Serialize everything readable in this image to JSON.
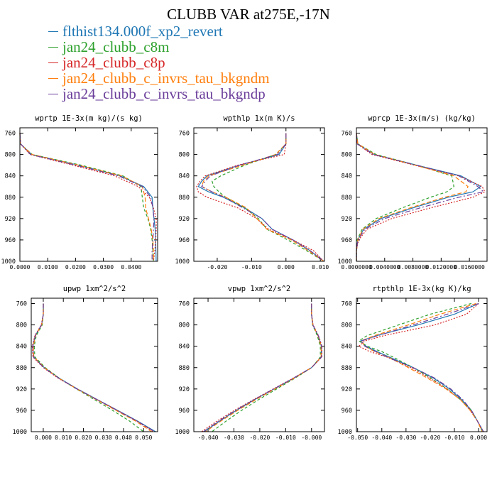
{
  "title": "CLUBB VAR at275E,-17N",
  "legend": [
    {
      "name": "flthist134.000f_xp2_revert",
      "color": "#1f77b4",
      "dash": ""
    },
    {
      "name": "jan24_clubb_c8m",
      "color": "#2ca02c",
      "dash": "4,3"
    },
    {
      "name": "jan24_clubb_c8p",
      "color": "#d62728",
      "dash": "2,2"
    },
    {
      "name": "jan24_clubb_c_invrs_tau_bkgndm",
      "color": "#ff7f0e",
      "dash": "6,3"
    },
    {
      "name": "jan24_clubb_c_invrs_tau_bkgndp",
      "color": "#6a3d9a",
      "dash": "7,3,2,3"
    }
  ],
  "chart_data": [
    {
      "type": "line",
      "title": "wprtp  1E-3x(m kg)/(s kg)",
      "xlim": [
        0,
        0.0495
      ],
      "ylim": [
        750,
        1000
      ],
      "xticks": [
        0,
        0.01,
        0.02,
        0.03,
        0.04
      ],
      "xtick_labels": [
        "0.0000",
        "0.0100",
        "0.0200",
        "0.0300",
        "0.0400"
      ],
      "yticks": [
        760,
        800,
        840,
        880,
        920,
        960,
        1000
      ],
      "y": [
        760,
        780,
        800,
        820,
        840,
        860,
        880,
        900,
        920,
        940,
        960,
        980,
        1000
      ],
      "series": [
        {
          "name": "flthist134.000f_xp2_revert",
          "values": [
            0,
            0.0002,
            0.0042,
            0.021,
            0.036,
            0.0445,
            0.0475,
            0.0478,
            0.0482,
            0.0486,
            0.0488,
            0.0489,
            0.049
          ]
        },
        {
          "name": "jan24_clubb_c8m",
          "values": [
            0,
            0.0001,
            0.0045,
            0.022,
            0.037,
            0.0435,
            0.044,
            0.0445,
            0.046,
            0.047,
            0.0475,
            0.0478,
            0.048
          ]
        },
        {
          "name": "jan24_clubb_c8p",
          "values": [
            0,
            0.0002,
            0.0037,
            0.019,
            0.034,
            0.0425,
            0.0465,
            0.048,
            0.049,
            0.049,
            0.0488,
            0.0485,
            0.048
          ]
        },
        {
          "name": "jan24_clubb_c_invrs_tau_bkgndm",
          "values": [
            0,
            0.0001,
            0.0044,
            0.021,
            0.0365,
            0.044,
            0.045,
            0.0452,
            0.0462,
            0.0472,
            0.0478,
            0.048,
            0.048
          ]
        },
        {
          "name": "jan24_clubb_c_invrs_tau_bkgndp",
          "values": [
            0,
            0.0003,
            0.0038,
            0.02,
            0.0355,
            0.044,
            0.047,
            0.0478,
            0.0482,
            0.048,
            0.0478,
            0.0475,
            0.0475
          ]
        }
      ]
    },
    {
      "type": "line",
      "title": "wpthlp  1x(m K)/s",
      "xlim": [
        -0.0268,
        0.0112
      ],
      "ylim": [
        750,
        1000
      ],
      "xticks": [
        -0.02,
        -0.01,
        0,
        0.01
      ],
      "xtick_labels": [
        "-0.020",
        "-0.010",
        "0.000",
        "0.010"
      ],
      "yticks": [
        760,
        800,
        840,
        880,
        920,
        960,
        1000
      ],
      "y": [
        760,
        780,
        800,
        820,
        840,
        850,
        860,
        870,
        880,
        900,
        920,
        940,
        960,
        980,
        1000
      ],
      "series": [
        {
          "name": "flthist134.000f_xp2_revert",
          "values": [
            0,
            0,
            -0.002,
            -0.0135,
            -0.023,
            -0.0245,
            -0.0255,
            -0.0225,
            -0.0182,
            -0.012,
            -0.007,
            -0.004,
            0.002,
            0.007,
            0.011
          ]
        },
        {
          "name": "jan24_clubb_c8m",
          "values": [
            0,
            0,
            -0.003,
            -0.012,
            -0.019,
            -0.0215,
            -0.021,
            -0.0195,
            -0.0175,
            -0.012,
            -0.008,
            -0.0055,
            0.0005,
            0.006,
            0.011
          ]
        },
        {
          "name": "jan24_clubb_c8p",
          "values": [
            0,
            0,
            -0.0005,
            -0.014,
            -0.0235,
            -0.025,
            -0.026,
            -0.0255,
            -0.023,
            -0.014,
            -0.0085,
            -0.005,
            0.002,
            0.008,
            0.011
          ]
        },
        {
          "name": "jan24_clubb_c_invrs_tau_bkgndm",
          "values": [
            0,
            0,
            -0.003,
            -0.0125,
            -0.0225,
            -0.024,
            -0.0245,
            -0.0215,
            -0.0175,
            -0.0115,
            -0.0085,
            -0.0055,
            0.0015,
            0.0065,
            0.011
          ]
        },
        {
          "name": "jan24_clubb_c_invrs_tau_bkgndp",
          "values": [
            0,
            0,
            -0.0025,
            -0.0135,
            -0.022,
            -0.0235,
            -0.0245,
            -0.0215,
            -0.018,
            -0.0125,
            -0.007,
            -0.004,
            0.002,
            0.007,
            0.011
          ]
        }
      ]
    },
    {
      "type": "line",
      "title": "wprcp  1E-3x(m/s) (kg/kg)",
      "xlim": [
        0,
        0.0185
      ],
      "ylim": [
        750,
        1000
      ],
      "xticks": [
        0,
        0.004,
        0.008,
        0.012,
        0.016
      ],
      "xtick_labels": [
        "0.0000000",
        "0.0040000",
        "0.0080000",
        "0.0120000",
        "0.0160000"
      ],
      "yticks": [
        760,
        800,
        840,
        880,
        920,
        960,
        1000
      ],
      "y": [
        760,
        780,
        800,
        820,
        840,
        860,
        870,
        880,
        900,
        920,
        940,
        960,
        980,
        1000
      ],
      "series": [
        {
          "name": "flthist134.000f_xp2_revert",
          "values": [
            0,
            0.0002,
            0.0025,
            0.0085,
            0.0148,
            0.0176,
            0.0165,
            0.013,
            0.008,
            0.0035,
            0.001,
            0.0002,
            0,
            0
          ]
        },
        {
          "name": "jan24_clubb_c8m",
          "values": [
            0,
            0.0002,
            0.0028,
            0.0085,
            0.0135,
            0.0138,
            0.0128,
            0.0105,
            0.0065,
            0.0028,
            0.0008,
            0.0001,
            0,
            0
          ]
        },
        {
          "name": "jan24_clubb_c8p",
          "values": [
            0,
            0.0001,
            0.0022,
            0.0082,
            0.0145,
            0.0178,
            0.0182,
            0.0165,
            0.0105,
            0.005,
            0.0015,
            0.0003,
            0,
            0
          ]
        },
        {
          "name": "jan24_clubb_c_invrs_tau_bkgndm",
          "values": [
            0,
            0.0002,
            0.0026,
            0.0083,
            0.0138,
            0.0158,
            0.0155,
            0.0125,
            0.0076,
            0.0032,
            0.0009,
            0.0002,
            0,
            0
          ]
        },
        {
          "name": "jan24_clubb_c_invrs_tau_bkgndp",
          "values": [
            0,
            0.0001,
            0.0024,
            0.0085,
            0.0145,
            0.0172,
            0.018,
            0.0145,
            0.009,
            0.004,
            0.0012,
            0.0002,
            0,
            0
          ]
        }
      ]
    },
    {
      "type": "line",
      "title": "upwp  1xm^2/s^2",
      "xlim": [
        -0.006,
        0.057
      ],
      "ylim": [
        750,
        1000
      ],
      "xticks": [
        0,
        0.01,
        0.02,
        0.03,
        0.04,
        0.05
      ],
      "xtick_labels": [
        "0.000",
        "0.010",
        "0.020",
        "0.030",
        "0.040",
        "0.050"
      ],
      "yticks": [
        760,
        800,
        840,
        880,
        920,
        960,
        1000
      ],
      "y": [
        760,
        780,
        800,
        820,
        840,
        860,
        880,
        900,
        920,
        940,
        960,
        980,
        1000
      ],
      "series": [
        {
          "name": "flthist134.000f_xp2_revert",
          "values": [
            0,
            0,
            -0.0008,
            -0.004,
            -0.0052,
            -0.0048,
            0.0005,
            0.008,
            0.017,
            0.027,
            0.037,
            0.047,
            0.056
          ]
        },
        {
          "name": "jan24_clubb_c8m",
          "values": [
            0,
            0,
            -0.0005,
            -0.0035,
            -0.0045,
            -0.0042,
            0.001,
            0.008,
            0.0165,
            0.0255,
            0.0345,
            0.043,
            0.05
          ]
        },
        {
          "name": "jan24_clubb_c8p",
          "values": [
            0,
            0,
            -0.001,
            -0.0042,
            -0.0055,
            -0.0052,
            0,
            0.0075,
            0.0168,
            0.0268,
            0.0368,
            0.0465,
            0.055
          ]
        },
        {
          "name": "jan24_clubb_c_invrs_tau_bkgndm",
          "values": [
            0,
            0,
            -0.0008,
            -0.0038,
            -0.005,
            -0.0047,
            0.0005,
            0.0078,
            0.0168,
            0.0265,
            0.0362,
            0.046,
            0.054
          ]
        },
        {
          "name": "jan24_clubb_c_invrs_tau_bkgndp",
          "values": [
            0,
            0,
            -0.0009,
            -0.004,
            -0.0053,
            -0.005,
            0.0003,
            0.0078,
            0.0168,
            0.0268,
            0.0368,
            0.0467,
            0.0555
          ]
        }
      ]
    },
    {
      "type": "line",
      "title": "vpwp  1xm^2/s^2",
      "xlim": [
        -0.0455,
        0.005
      ],
      "ylim": [
        750,
        1000
      ],
      "xticks": [
        -0.04,
        -0.03,
        -0.02,
        -0.01,
        0
      ],
      "xtick_labels": [
        "-0.040",
        "-0.030",
        "-0.020",
        "-0.010",
        "-0.000"
      ],
      "yticks": [
        760,
        800,
        840,
        880,
        920,
        960,
        1000
      ],
      "y": [
        760,
        780,
        800,
        820,
        840,
        860,
        880,
        900,
        920,
        940,
        960,
        980,
        1000
      ],
      "series": [
        {
          "name": "flthist134.000f_xp2_revert",
          "values": [
            0,
            0,
            0.0005,
            0.0025,
            0.0038,
            0.0038,
            0,
            -0.007,
            -0.0145,
            -0.022,
            -0.029,
            -0.0355,
            -0.0415
          ]
        },
        {
          "name": "jan24_clubb_c8m",
          "values": [
            0,
            0,
            0.0004,
            0.0022,
            0.0034,
            0.0034,
            0.0001,
            -0.0065,
            -0.0135,
            -0.0205,
            -0.027,
            -0.033,
            -0.0385
          ]
        },
        {
          "name": "jan24_clubb_c8p",
          "values": [
            0,
            0,
            0.0006,
            0.0027,
            0.004,
            0.004,
            0,
            -0.0072,
            -0.0148,
            -0.0225,
            -0.0298,
            -0.0365,
            -0.0425
          ]
        },
        {
          "name": "jan24_clubb_c_invrs_tau_bkgndm",
          "values": [
            0,
            0,
            0.0005,
            0.0025,
            0.0037,
            0.0037,
            0,
            -0.0068,
            -0.0142,
            -0.0215,
            -0.0285,
            -0.035,
            -0.041
          ]
        },
        {
          "name": "jan24_clubb_c_invrs_tau_bkgndp",
          "values": [
            0,
            0,
            0.0005,
            0.0026,
            0.0039,
            0.0039,
            0,
            -0.007,
            -0.0146,
            -0.0222,
            -0.0293,
            -0.0358,
            -0.0418
          ]
        }
      ]
    },
    {
      "type": "line",
      "title": "rtpthlp  1E-3x(kg K)/kg",
      "xlim": [
        -0.0505,
        0.0035
      ],
      "ylim": [
        750,
        1000
      ],
      "xticks": [
        -0.05,
        -0.04,
        -0.03,
        -0.02,
        -0.01,
        0
      ],
      "xtick_labels": [
        "-0.050",
        "-0.040",
        "-0.030",
        "-0.020",
        "-0.010",
        "0.000"
      ],
      "yticks": [
        760,
        800,
        840,
        880,
        920,
        960,
        1000
      ],
      "y": [
        760,
        780,
        800,
        820,
        830,
        840,
        850,
        860,
        880,
        900,
        920,
        940,
        960,
        980,
        1000
      ],
      "series": [
        {
          "name": "flthist134.000f_xp2_revert",
          "values": [
            0,
            -0.01,
            -0.025,
            -0.042,
            -0.0488,
            -0.0465,
            -0.042,
            -0.037,
            -0.027,
            -0.0185,
            -0.012,
            -0.007,
            -0.003,
            -0.0005,
            0.002
          ]
        },
        {
          "name": "jan24_clubb_c8m",
          "values": [
            -0.003,
            -0.02,
            -0.033,
            -0.046,
            -0.0495,
            -0.046,
            -0.04,
            -0.0355,
            -0.027,
            -0.0195,
            -0.013,
            -0.0075,
            -0.003,
            -0.0005,
            0.0015
          ]
        },
        {
          "name": "jan24_clubb_c8p",
          "values": [
            0,
            -0.005,
            -0.018,
            -0.039,
            -0.047,
            -0.0495,
            -0.045,
            -0.038,
            -0.028,
            -0.02,
            -0.013,
            -0.0075,
            -0.0035,
            -0.0005,
            0.002
          ]
        },
        {
          "name": "jan24_clubb_c_invrs_tau_bkgndm",
          "values": [
            -0.001,
            -0.016,
            -0.029,
            -0.043,
            -0.0485,
            -0.047,
            -0.043,
            -0.0375,
            -0.029,
            -0.021,
            -0.0135,
            -0.0075,
            -0.0035,
            -0.0005,
            0.0015
          ]
        },
        {
          "name": "jan24_clubb_c_invrs_tau_bkgndp",
          "values": [
            0,
            -0.013,
            -0.027,
            -0.0415,
            -0.0485,
            -0.047,
            -0.0425,
            -0.038,
            -0.027,
            -0.018,
            -0.0115,
            -0.0065,
            -0.003,
            -0.0005,
            0.002
          ]
        }
      ]
    }
  ]
}
